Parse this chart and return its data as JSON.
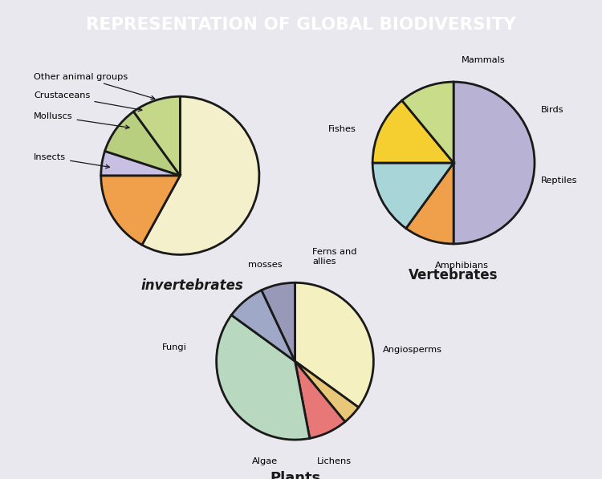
{
  "title": "REPRESENTATION OF GLOBAL BIODIVERSITY",
  "title_bg": "#8B3FA8",
  "title_color": "#ffffff",
  "bg_color": "#E8E8EE",
  "inv_sizes": [
    58,
    17,
    5,
    10,
    10
  ],
  "inv_colors": [
    "#F5F0CC",
    "#F0A04A",
    "#C8C0E2",
    "#B8CF80",
    "#C5D88A"
  ],
  "inv_title": "invertebrates",
  "inv_startangle": 90,
  "vert_sizes": [
    50,
    10,
    15,
    14,
    11
  ],
  "vert_colors": [
    "#B8B2D5",
    "#F0A04A",
    "#A8D5D8",
    "#F5CF30",
    "#C8DC8A"
  ],
  "vert_title": "Vertebrates",
  "vert_startangle": 90,
  "plant_labels": [
    "Angiosperms",
    "Lichens",
    "Algae",
    "Fungi",
    "mosses",
    "Ferns and\nallies"
  ],
  "plant_sizes": [
    35,
    4,
    8,
    38,
    8,
    7
  ],
  "plant_colors": [
    "#F5F0C0",
    "#E8C878",
    "#E87878",
    "#B8D8C0",
    "#A0A8C8",
    "#9898B8"
  ],
  "plant_title": "Plants",
  "plant_startangle": 90
}
